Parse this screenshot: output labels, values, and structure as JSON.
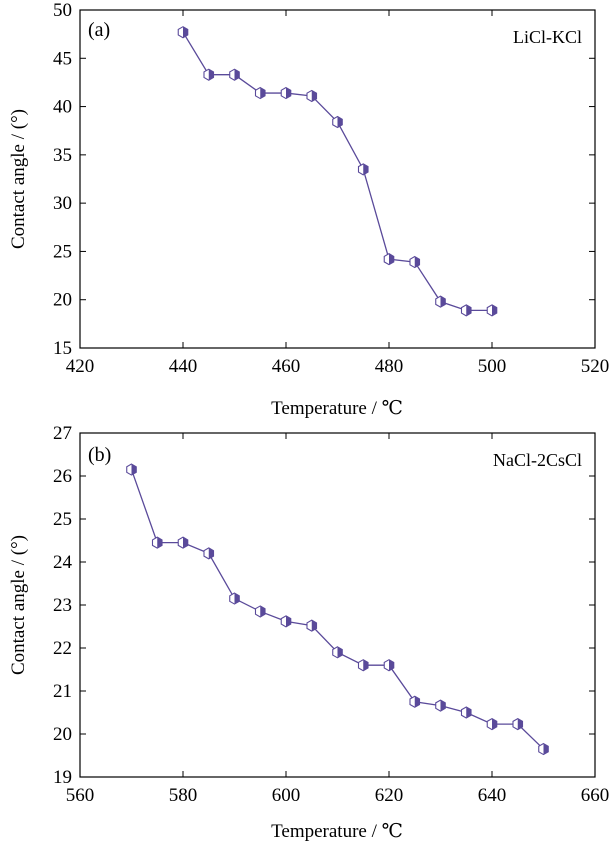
{
  "colors": {
    "series": "#5a4a9a",
    "axis": "#000000",
    "background": "#ffffff"
  },
  "chart_data": [
    {
      "type": "line",
      "panel_label": "(a)",
      "legend_text": "LiCl-KCl",
      "xlabel": "Temperature / ℃",
      "ylabel": "Contact angle / (°)",
      "xlim": [
        420,
        520
      ],
      "ylim": [
        15,
        50
      ],
      "xticks": [
        420,
        440,
        460,
        480,
        500,
        520
      ],
      "yticks": [
        15,
        20,
        25,
        30,
        35,
        40,
        45,
        50
      ],
      "grid": false,
      "x": [
        440,
        445,
        450,
        455,
        460,
        465,
        470,
        475,
        480,
        485,
        490,
        495,
        500
      ],
      "y": [
        47.7,
        43.3,
        43.3,
        41.4,
        41.4,
        41.1,
        38.4,
        33.5,
        24.2,
        23.9,
        19.8,
        18.9,
        18.9
      ]
    },
    {
      "type": "line",
      "panel_label": "(b)",
      "legend_text": "NaCl-2CsCl",
      "xlabel": "Temperature / ℃",
      "ylabel": "Contact angle / (°)",
      "xlim": [
        560,
        660
      ],
      "ylim": [
        19,
        27
      ],
      "xticks": [
        560,
        580,
        600,
        620,
        640,
        660
      ],
      "yticks": [
        19,
        20,
        21,
        22,
        23,
        24,
        25,
        26,
        27
      ],
      "grid": false,
      "x": [
        570,
        575,
        580,
        585,
        590,
        595,
        600,
        605,
        610,
        615,
        620,
        625,
        630,
        635,
        640,
        645,
        650
      ],
      "y": [
        26.15,
        24.45,
        24.45,
        24.2,
        23.15,
        22.85,
        22.62,
        22.52,
        21.9,
        21.6,
        21.6,
        20.75,
        20.66,
        20.5,
        20.23,
        20.23,
        19.65
      ]
    }
  ]
}
